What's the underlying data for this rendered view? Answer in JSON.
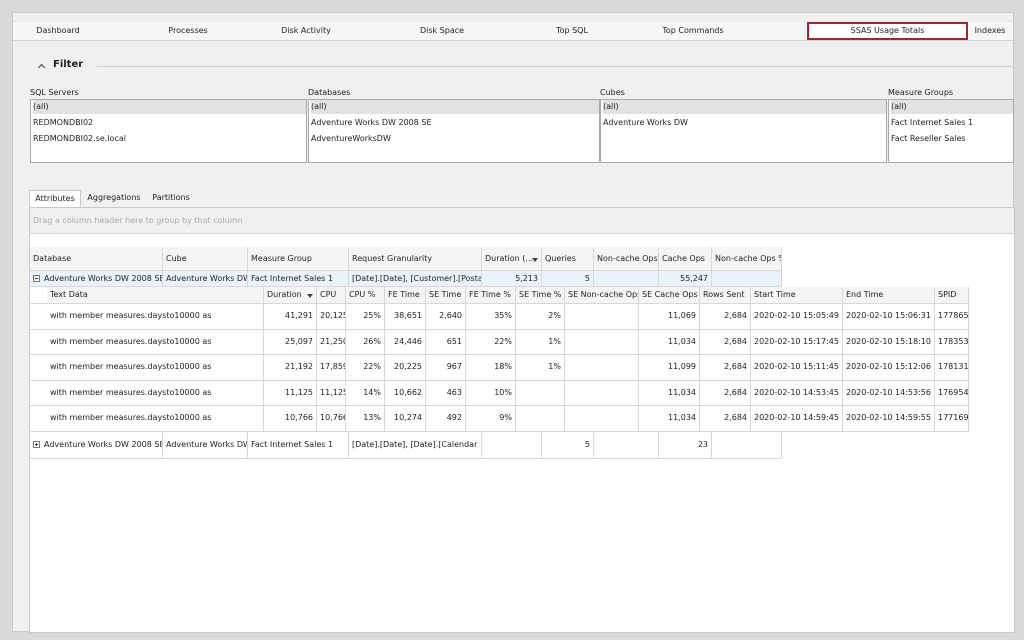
{
  "tabs": [
    "Dashboard",
    "Processes",
    "Disk Activity",
    "Disk Space",
    "Top SQL",
    "Top Commands",
    "SSAS Usage Totals",
    "Indexes"
  ],
  "filter": {
    "title": "Filter",
    "lists": [
      {
        "label": "SQL Servers",
        "items": [
          "(all)",
          "REDMONDBI02",
          "REDMONDBI02.se.local"
        ]
      },
      {
        "label": "Databases",
        "items": [
          "(all)",
          "Adventure Works DW 2008 SE",
          "AdventureWorksDW"
        ]
      },
      {
        "label": "Cubes",
        "items": [
          "(all)",
          "Adventure Works DW"
        ]
      },
      {
        "label": "Measure Groups",
        "items": [
          "(all)",
          "Fact Internet Sales 1",
          "Fact Reseller Sales"
        ]
      }
    ]
  },
  "subtabs": [
    "Attributes",
    "Aggregations",
    "Partitions"
  ],
  "grid": {
    "group_hint": "Drag a column header here to group by that column",
    "columns": [
      "Database",
      "Cube",
      "Measure Group",
      "Request Granularity",
      "Duration (...",
      "Queries",
      "Non-cache Ops",
      "Cache Ops",
      "Non-cache Ops %"
    ],
    "detail_columns": [
      "Text Data",
      "Duration",
      "CPU",
      "CPU %",
      "FE Time",
      "SE Time",
      "FE Time %",
      "SE Time %",
      "SE Non-cache Ops",
      "SE Cache Ops",
      "Rows Sent",
      "Start Time",
      "End Time",
      "SPID"
    ],
    "rows": [
      {
        "cells": [
          "Adventure Works DW 2008 SE",
          "Adventure Works DW",
          "Fact Internet Sales 1",
          "[Date].[Date], [Customer].[Postal",
          "5,213",
          "5",
          null,
          "55,247",
          null
        ],
        "details": [
          [
            "with member measures.daysto10000 as",
            "41,291",
            "20,125",
            "25%",
            "38,651",
            "2,640",
            "35%",
            "2%",
            null,
            "11,069",
            "2,684",
            "2020-02-10 15:05:49",
            "2020-02-10 15:06:31",
            "177865"
          ],
          [
            "with member measures.daysto10000 as",
            "25,097",
            "21,250",
            "26%",
            "24,446",
            "651",
            "22%",
            "1%",
            null,
            "11,034",
            "2,684",
            "2020-02-10 15:17:45",
            "2020-02-10 15:18:10",
            "178353"
          ],
          [
            "with member measures.daysto10000 as",
            "21,192",
            "17,859",
            "22%",
            "20,225",
            "967",
            "18%",
            "1%",
            null,
            "11,099",
            "2,684",
            "2020-02-10 15:11:45",
            "2020-02-10 15:12:06",
            "178131"
          ],
          [
            "with member measures.daysto10000 as",
            "11,125",
            "11,125",
            "14%",
            "10,662",
            "463",
            "10%",
            null,
            null,
            "11,034",
            "2,684",
            "2020-02-10 14:53:45",
            "2020-02-10 14:53:56",
            "176954"
          ],
          [
            "with member measures.daysto10000 as",
            "10,766",
            "10,766",
            "13%",
            "10,274",
            "492",
            "9%",
            null,
            null,
            "11,034",
            "2,684",
            "2020-02-10 14:59:45",
            "2020-02-10 14:59:55",
            "177169"
          ]
        ]
      },
      {
        "cells": [
          "Adventure Works DW 2008 SE",
          "Adventure Works DW",
          "Fact Internet Sales 1",
          "[Date].[Date], [Date].[Calendar",
          null,
          "5",
          null,
          "23",
          null
        ]
      }
    ]
  }
}
